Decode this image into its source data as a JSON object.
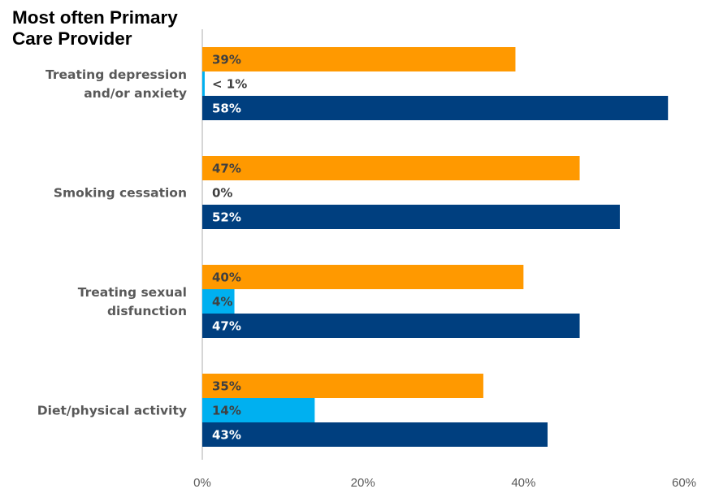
{
  "chart_data": {
    "type": "bar",
    "orientation": "horizontal",
    "title": [
      "Most often Primary",
      "Care Provider"
    ],
    "categories": [
      [
        "Treating depression",
        "and/or anxiety"
      ],
      [
        "Smoking cessation"
      ],
      [
        "Treating sexual",
        "disfunction"
      ],
      [
        "Diet/physical activity"
      ]
    ],
    "series": [
      {
        "color": "#FF9900",
        "values": [
          39,
          47,
          40,
          35
        ],
        "labels": [
          "39%",
          "47%",
          "40%",
          "35%"
        ],
        "label_color": "#404040"
      },
      {
        "color": "#00B0F0",
        "values": [
          0.3,
          0,
          4,
          14
        ],
        "labels": [
          "< 1%",
          "0%",
          "4%",
          "14%"
        ],
        "label_color": "#404040"
      },
      {
        "color": "#003F7F",
        "values": [
          58,
          52,
          47,
          43
        ],
        "labels": [
          "58%",
          "52%",
          "47%",
          "43%"
        ],
        "label_color": "#FFFFFF"
      }
    ],
    "xlim": [
      0,
      60
    ],
    "xticks": [
      0,
      20,
      40,
      60
    ],
    "xtick_labels": [
      "0%",
      "20%",
      "40%",
      "60%"
    ],
    "grid": false,
    "legend": "none"
  }
}
